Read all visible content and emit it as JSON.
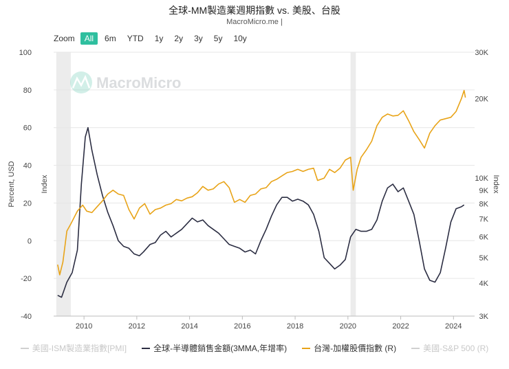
{
  "header": {
    "title": "全球-MM製造業週期指數 vs. 美股、台股",
    "subtitle": "MacroMicro.me |"
  },
  "zoom": {
    "label": "Zoom",
    "buttons": [
      "All",
      "6m",
      "YTD",
      "1y",
      "2y",
      "3y",
      "5y",
      "10y"
    ],
    "active": "All"
  },
  "watermark": "MacroMicro",
  "colors": {
    "semis": "#2b2d42",
    "taiex": "#e8a317",
    "hidden": "#d0d0d0",
    "recession_band": "#ececec",
    "grid": "#e6e6e6"
  },
  "legend": [
    {
      "label": "美國-ISM製造業指數[PMI]",
      "color": "#d0d0d0",
      "hidden": true
    },
    {
      "label": "全球-半導體銷售金額(3MMA,年增率)",
      "color": "#2b2d42",
      "hidden": false
    },
    {
      "label": "台灣-加權股價指數 (R)",
      "color": "#e8a317",
      "hidden": false
    },
    {
      "label": "美國-S&P 500 (R)",
      "color": "#d0d0d0",
      "hidden": true
    }
  ],
  "chart_data": {
    "type": "line",
    "xlim": [
      2008.85,
      2024.8
    ],
    "x_ticks": [
      "2010",
      "2012",
      "2014",
      "2016",
      "2018",
      "2020",
      "2022",
      "2024"
    ],
    "x_tick_values": [
      2010,
      2012,
      2014,
      2016,
      2018,
      2020,
      2022,
      2024
    ],
    "left_axis": {
      "label": "Percent, USD",
      "label2": "Index",
      "ylim": [
        -40,
        100
      ],
      "ticks": [
        "100",
        "80",
        "60",
        "40",
        "20",
        "0",
        "-20",
        "-40"
      ],
      "tick_values": [
        100,
        80,
        60,
        40,
        20,
        0,
        -20,
        -40
      ]
    },
    "right_axis": {
      "label": "Index",
      "scale": "log",
      "ylim": [
        3000,
        30000
      ],
      "ticks": [
        "30K",
        "20K",
        "10K",
        "9K",
        "8K",
        "7K",
        "6K",
        "5K",
        "4K",
        "3K"
      ],
      "tick_values": [
        30000,
        20000,
        10000,
        9000,
        8000,
        7000,
        6000,
        5000,
        4000,
        3000
      ]
    },
    "bands": [
      [
        2008.95,
        2009.5
      ],
      [
        2020.1,
        2020.3
      ]
    ],
    "series": [
      {
        "name": "全球-半導體銷售金額(3MMA,年增率)",
        "axis": "left",
        "points": [
          [
            2009.0,
            -29
          ],
          [
            2009.15,
            -30
          ],
          [
            2009.35,
            -22
          ],
          [
            2009.55,
            -17
          ],
          [
            2009.75,
            -5
          ],
          [
            2009.9,
            30
          ],
          [
            2010.05,
            55
          ],
          [
            2010.15,
            60
          ],
          [
            2010.3,
            48
          ],
          [
            2010.5,
            35
          ],
          [
            2010.7,
            24
          ],
          [
            2010.9,
            15
          ],
          [
            2011.1,
            8
          ],
          [
            2011.3,
            0
          ],
          [
            2011.5,
            -3
          ],
          [
            2011.7,
            -4
          ],
          [
            2011.9,
            -7
          ],
          [
            2012.1,
            -8
          ],
          [
            2012.25,
            -6
          ],
          [
            2012.5,
            -2
          ],
          [
            2012.7,
            -1
          ],
          [
            2012.9,
            3
          ],
          [
            2013.1,
            5
          ],
          [
            2013.3,
            2
          ],
          [
            2013.5,
            4
          ],
          [
            2013.7,
            6
          ],
          [
            2013.9,
            9
          ],
          [
            2014.1,
            12
          ],
          [
            2014.3,
            10
          ],
          [
            2014.5,
            11
          ],
          [
            2014.7,
            8
          ],
          [
            2014.9,
            6
          ],
          [
            2015.1,
            4
          ],
          [
            2015.3,
            1
          ],
          [
            2015.5,
            -2
          ],
          [
            2015.7,
            -3
          ],
          [
            2015.9,
            -4
          ],
          [
            2016.1,
            -6
          ],
          [
            2016.3,
            -5
          ],
          [
            2016.5,
            -7
          ],
          [
            2016.7,
            0
          ],
          [
            2016.9,
            6
          ],
          [
            2017.1,
            13
          ],
          [
            2017.3,
            19
          ],
          [
            2017.5,
            23
          ],
          [
            2017.7,
            23
          ],
          [
            2017.9,
            21
          ],
          [
            2018.1,
            22
          ],
          [
            2018.3,
            21
          ],
          [
            2018.5,
            19
          ],
          [
            2018.7,
            14
          ],
          [
            2018.9,
            5
          ],
          [
            2019.1,
            -9
          ],
          [
            2019.3,
            -12
          ],
          [
            2019.5,
            -15
          ],
          [
            2019.7,
            -13
          ],
          [
            2019.9,
            -10
          ],
          [
            2020.1,
            2
          ],
          [
            2020.3,
            6
          ],
          [
            2020.5,
            5
          ],
          [
            2020.7,
            5
          ],
          [
            2020.9,
            6
          ],
          [
            2021.1,
            11
          ],
          [
            2021.3,
            21
          ],
          [
            2021.5,
            28
          ],
          [
            2021.7,
            30
          ],
          [
            2021.9,
            26
          ],
          [
            2022.1,
            28
          ],
          [
            2022.3,
            21
          ],
          [
            2022.5,
            14
          ],
          [
            2022.7,
            0
          ],
          [
            2022.9,
            -15
          ],
          [
            2023.1,
            -21
          ],
          [
            2023.3,
            -22
          ],
          [
            2023.5,
            -17
          ],
          [
            2023.7,
            -4
          ],
          [
            2023.9,
            10
          ],
          [
            2024.1,
            17
          ],
          [
            2024.3,
            18
          ],
          [
            2024.4,
            19
          ]
        ]
      },
      {
        "name": "台灣-加權股價指數 (R)",
        "axis": "right",
        "points": [
          [
            2009.0,
            4700
          ],
          [
            2009.08,
            4300
          ],
          [
            2009.2,
            4800
          ],
          [
            2009.35,
            6300
          ],
          [
            2009.5,
            6700
          ],
          [
            2009.75,
            7500
          ],
          [
            2009.95,
            7900
          ],
          [
            2010.1,
            7500
          ],
          [
            2010.3,
            7400
          ],
          [
            2010.5,
            7800
          ],
          [
            2010.7,
            8200
          ],
          [
            2010.9,
            8700
          ],
          [
            2011.1,
            9000
          ],
          [
            2011.3,
            8700
          ],
          [
            2011.5,
            8600
          ],
          [
            2011.7,
            7600
          ],
          [
            2011.9,
            7000
          ],
          [
            2012.1,
            7700
          ],
          [
            2012.3,
            8000
          ],
          [
            2012.5,
            7300
          ],
          [
            2012.7,
            7600
          ],
          [
            2012.9,
            7700
          ],
          [
            2013.1,
            7900
          ],
          [
            2013.3,
            8000
          ],
          [
            2013.5,
            8300
          ],
          [
            2013.7,
            8200
          ],
          [
            2013.9,
            8400
          ],
          [
            2014.1,
            8500
          ],
          [
            2014.3,
            8800
          ],
          [
            2014.5,
            9300
          ],
          [
            2014.7,
            9000
          ],
          [
            2014.9,
            9100
          ],
          [
            2015.1,
            9500
          ],
          [
            2015.3,
            9700
          ],
          [
            2015.5,
            9200
          ],
          [
            2015.7,
            8100
          ],
          [
            2015.9,
            8300
          ],
          [
            2016.1,
            8100
          ],
          [
            2016.3,
            8600
          ],
          [
            2016.5,
            8700
          ],
          [
            2016.7,
            9100
          ],
          [
            2016.9,
            9200
          ],
          [
            2017.1,
            9700
          ],
          [
            2017.3,
            9900
          ],
          [
            2017.5,
            10200
          ],
          [
            2017.7,
            10500
          ],
          [
            2017.9,
            10600
          ],
          [
            2018.1,
            10800
          ],
          [
            2018.3,
            10600
          ],
          [
            2018.5,
            10800
          ],
          [
            2018.7,
            10900
          ],
          [
            2018.85,
            9800
          ],
          [
            2019.1,
            10000
          ],
          [
            2019.3,
            10800
          ],
          [
            2019.5,
            10500
          ],
          [
            2019.7,
            10900
          ],
          [
            2019.9,
            11700
          ],
          [
            2020.1,
            12000
          ],
          [
            2020.2,
            9000
          ],
          [
            2020.35,
            10800
          ],
          [
            2020.5,
            12000
          ],
          [
            2020.7,
            12800
          ],
          [
            2020.9,
            13800
          ],
          [
            2021.1,
            15800
          ],
          [
            2021.3,
            17000
          ],
          [
            2021.5,
            17500
          ],
          [
            2021.7,
            17200
          ],
          [
            2021.9,
            17300
          ],
          [
            2022.1,
            18000
          ],
          [
            2022.3,
            16500
          ],
          [
            2022.5,
            15000
          ],
          [
            2022.7,
            14000
          ],
          [
            2022.9,
            13000
          ],
          [
            2023.1,
            14800
          ],
          [
            2023.3,
            15800
          ],
          [
            2023.5,
            16600
          ],
          [
            2023.7,
            16800
          ],
          [
            2023.9,
            17000
          ],
          [
            2024.1,
            17900
          ],
          [
            2024.3,
            20000
          ],
          [
            2024.4,
            21500
          ],
          [
            2024.45,
            20200
          ]
        ]
      }
    ]
  }
}
